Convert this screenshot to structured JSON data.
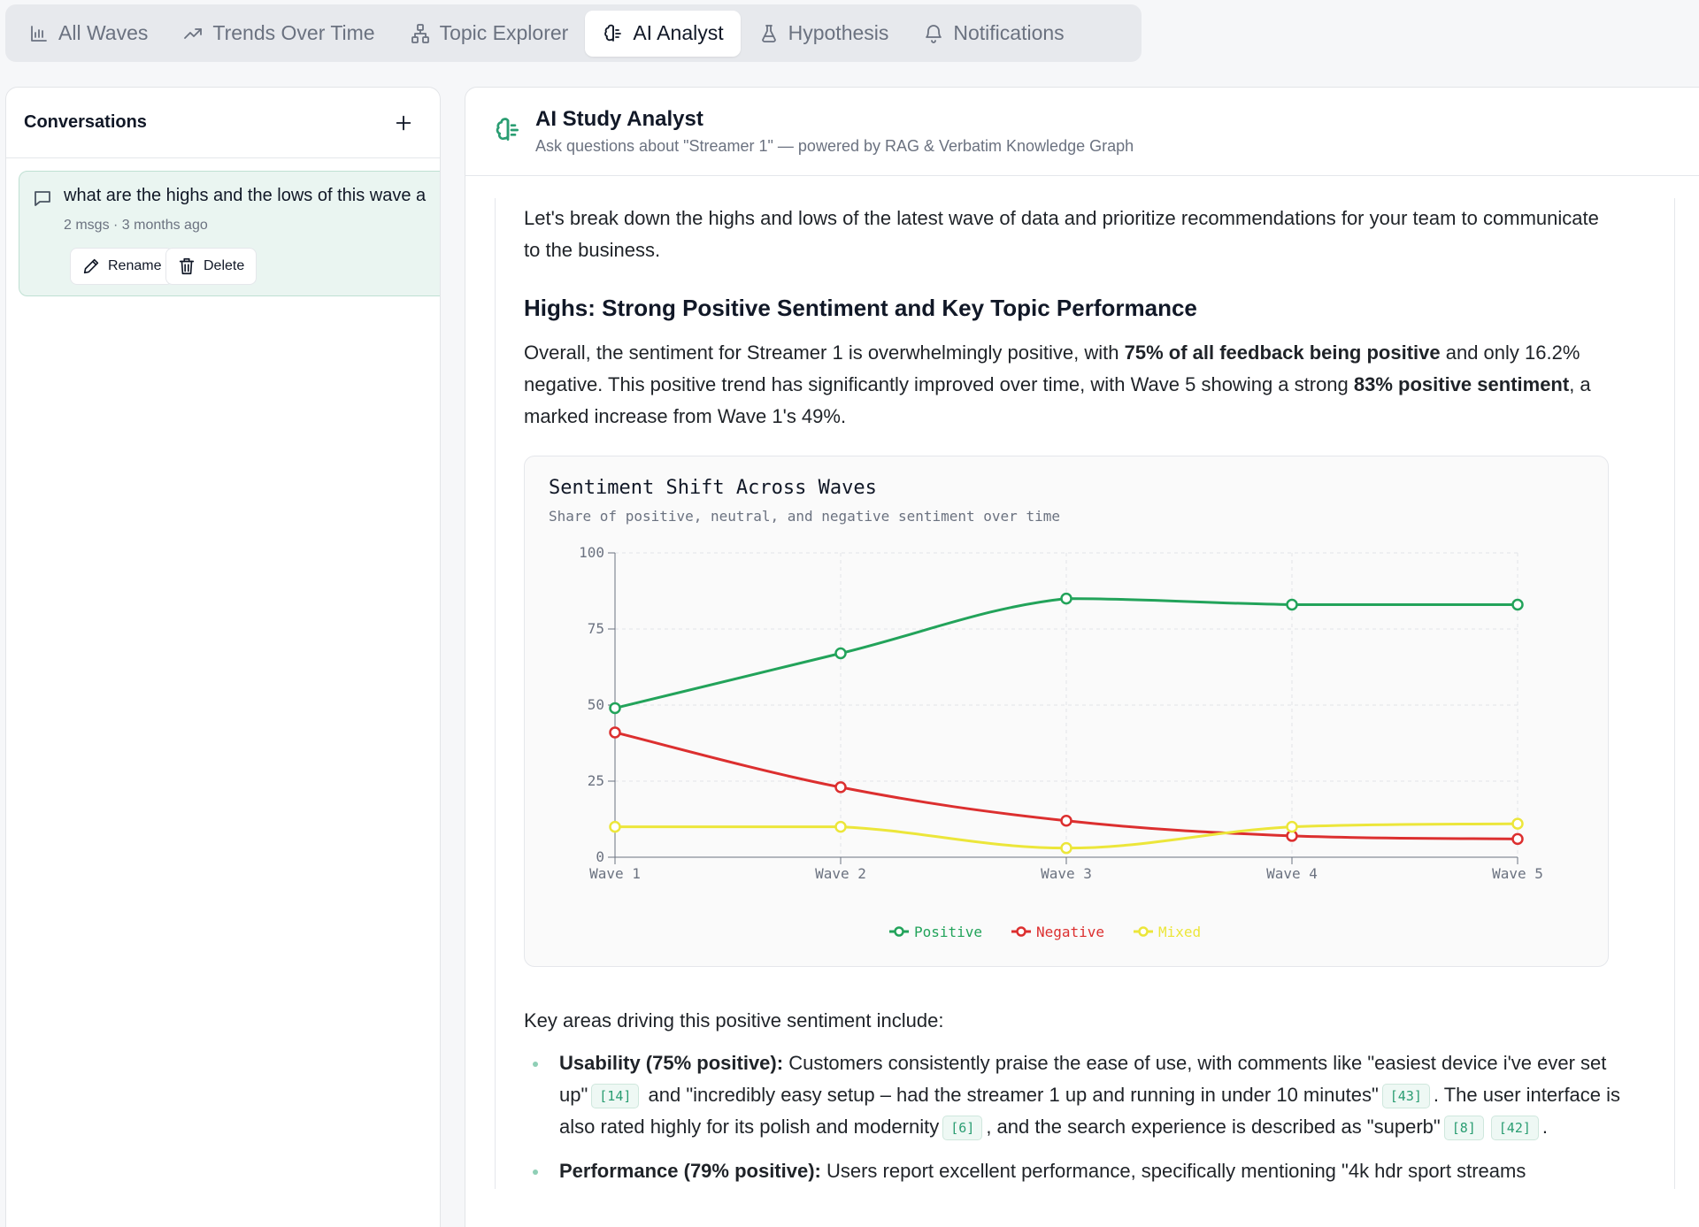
{
  "tabs": [
    {
      "label": "All Waves",
      "icon": "bar-chart-icon",
      "active": false
    },
    {
      "label": "Trends Over Time",
      "icon": "trending-up-icon",
      "active": false
    },
    {
      "label": "Topic Explorer",
      "icon": "network-icon",
      "active": false
    },
    {
      "label": "AI Analyst",
      "icon": "brain-icon",
      "active": true
    },
    {
      "label": "Hypothesis",
      "icon": "flask-icon",
      "active": false
    },
    {
      "label": "Notifications",
      "icon": "bell-icon",
      "active": false
    }
  ],
  "sidebar": {
    "title": "Conversations",
    "conversation": {
      "title": "what are the highs and the lows of this wave a",
      "meta": "2 msgs · 3 months ago",
      "rename_label": "Rename",
      "delete_label": "Delete"
    }
  },
  "header": {
    "title": "AI Study Analyst",
    "subtitle": "Ask questions about \"Streamer 1\" — powered by RAG & Verbatim Knowledge Graph"
  },
  "message": {
    "intro": "Let's break down the highs and lows of the latest wave of data and prioritize recommendations for your team to communicate to the business.",
    "heading": "Highs: Strong Positive Sentiment and Key Topic Performance",
    "para1": {
      "a": "Overall, the sentiment for Streamer 1 is overwhelmingly positive, with ",
      "b": "75% of all feedback being positive",
      "c": " and only 16.2% negative. This positive trend has significantly improved over time, with Wave 5 showing a strong ",
      "d": "83% positive sentiment",
      "e": ", a marked increase from Wave 1's 49%."
    },
    "key_areas": "Key areas driving this positive sentiment include:",
    "bullet1": {
      "label": "Usability (75% positive):",
      "t1": " Customers consistently praise the ease of use, with comments like \"easiest device i've ever set up\"",
      "c1": "[14]",
      "t2": " and \"incredibly easy setup – had the streamer 1 up and running in under 10 minutes\"",
      "c2": "[43]",
      "t3": ". The user interface is also rated highly for its polish and modernity",
      "c3": "[6]",
      "t4": ", and the search experience is described as \"superb\"",
      "c4": "[8]",
      "c5": "[42]",
      "t5": "."
    },
    "bullet2": {
      "label": "Performance (79% positive):",
      "t1": " Users report excellent performance, specifically mentioning \"4k hdr sport streams"
    }
  },
  "chart_data": {
    "type": "line",
    "title": "Sentiment Shift Across Waves",
    "subtitle": "Share of positive, neutral, and negative sentiment over time",
    "categories": [
      "Wave 1",
      "Wave 2",
      "Wave 3",
      "Wave 4",
      "Wave 5"
    ],
    "ylim": [
      0,
      100
    ],
    "yticks": [
      0,
      25,
      50,
      75,
      100
    ],
    "grid": true,
    "legend": "bottom-center",
    "series": [
      {
        "name": "Positive",
        "color": "#22a35a",
        "values": [
          49,
          67,
          85,
          83,
          83
        ]
      },
      {
        "name": "Negative",
        "color": "#dc2f2f",
        "values": [
          41,
          23,
          12,
          7,
          6
        ]
      },
      {
        "name": "Mixed",
        "color": "#ece63a",
        "values": [
          10,
          10,
          3,
          10,
          11
        ]
      }
    ]
  }
}
